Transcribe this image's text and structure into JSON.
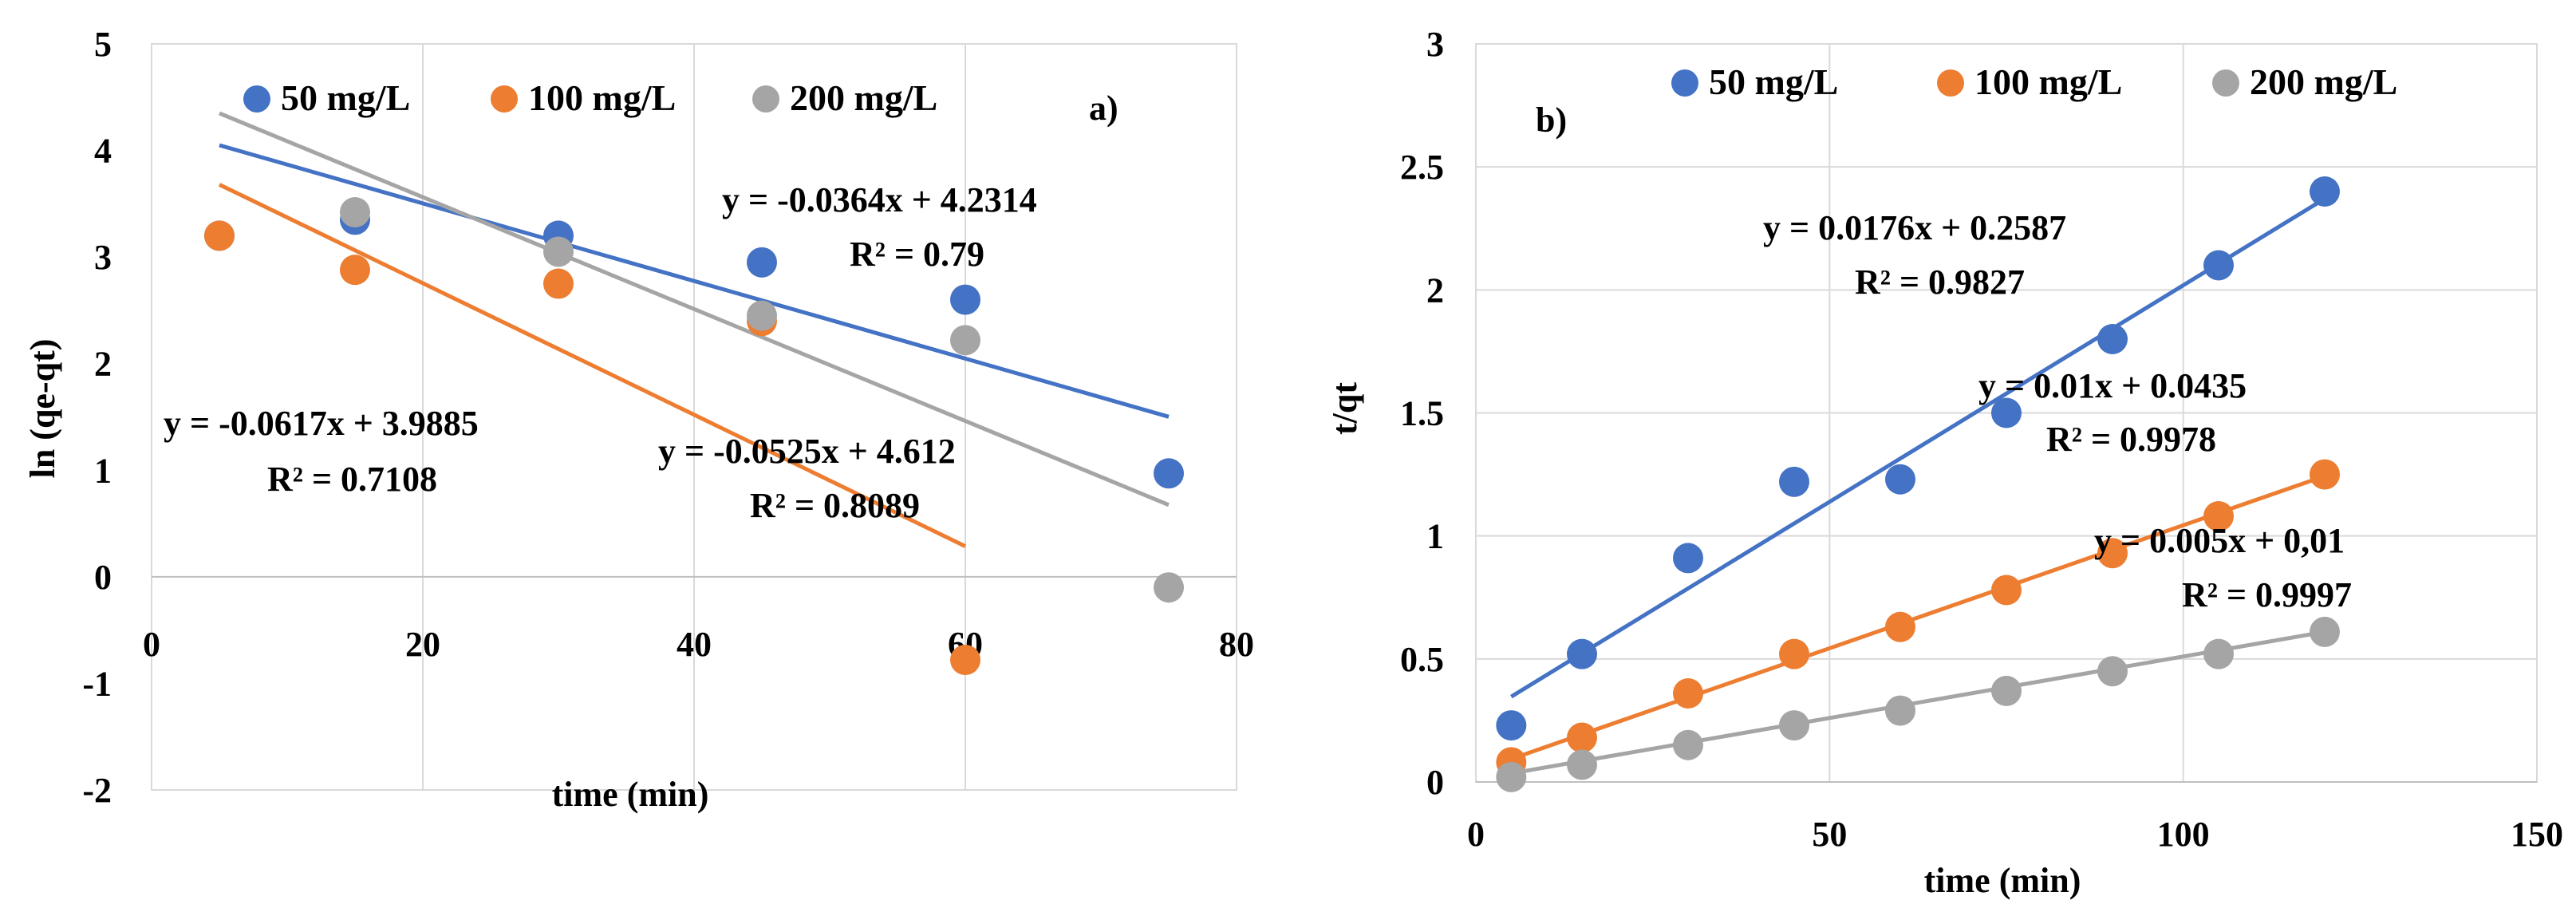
{
  "colors": {
    "s50": "#4472C4",
    "s100": "#ED7D31",
    "s200": "#A5A5A5",
    "grid": "#D9D9D9"
  },
  "chart_data": [
    {
      "type": "scatter",
      "panel_label": "a)",
      "xlabel": "time  (min)",
      "ylabel": "ln (qe-qt)",
      "xlim": [
        0,
        80
      ],
      "ylim": [
        -2,
        5
      ],
      "xticks": [
        0,
        20,
        40,
        60,
        80
      ],
      "yticks": [
        -2,
        -1,
        0,
        1,
        2,
        3,
        4,
        5
      ],
      "grid": "vertical",
      "legend": "top",
      "series": [
        {
          "name": "50 mg/L",
          "color_key": "s50",
          "x": [
            5,
            15,
            30,
            45,
            60,
            75
          ],
          "y": [
            3.2,
            3.35,
            3.2,
            2.95,
            2.6,
            0.97
          ],
          "trendline": {
            "slope": -0.0364,
            "intercept": 4.2314,
            "x_range": [
              5,
              75
            ]
          },
          "equation": "y = -0.0364x + 4.2314",
          "r2": "R² = 0.79"
        },
        {
          "name": "100 mg/L",
          "color_key": "s100",
          "x": [
            5,
            15,
            30,
            45,
            60
          ],
          "y": [
            3.2,
            2.88,
            2.75,
            2.4,
            -0.78
          ],
          "trendline": {
            "slope": -0.0617,
            "intercept": 3.9885,
            "x_range": [
              5,
              60
            ]
          },
          "equation": "y = -0.0617x + 3.9885",
          "r2": "R² = 0.7108"
        },
        {
          "name": "200 mg/L",
          "color_key": "s200",
          "x": [
            15,
            30,
            45,
            60,
            75
          ],
          "y": [
            3.42,
            3.05,
            2.45,
            2.22,
            -0.1
          ],
          "trendline": {
            "slope": -0.0525,
            "intercept": 4.612,
            "x_range": [
              5,
              75
            ]
          },
          "equation": "y = -0.0525x + 4.612",
          "r2": "R² = 0.8089"
        }
      ]
    },
    {
      "type": "scatter",
      "panel_label": "b)",
      "xlabel": "time (min)",
      "ylabel": "t/qt",
      "xlim": [
        0,
        150
      ],
      "ylim": [
        0,
        3
      ],
      "xticks": [
        0,
        50,
        100,
        150
      ],
      "yticks": [
        0,
        0.5,
        1,
        1.5,
        2,
        2.5,
        3
      ],
      "grid": "both",
      "legend": "top",
      "series": [
        {
          "name": "50 mg/L",
          "color_key": "s50",
          "x": [
            5,
            15,
            30,
            45,
            60,
            75,
            90,
            105,
            120
          ],
          "y": [
            0.23,
            0.52,
            0.91,
            1.22,
            1.23,
            1.5,
            1.8,
            2.1,
            2.4
          ],
          "trendline": {
            "slope": 0.0176,
            "intercept": 0.2587,
            "x_range": [
              5,
              120
            ]
          },
          "equation": "y = 0.0176x + 0.2587",
          "r2": "R² = 0.9827"
        },
        {
          "name": "100 mg/L",
          "color_key": "s100",
          "x": [
            5,
            15,
            30,
            45,
            60,
            75,
            90,
            105,
            120
          ],
          "y": [
            0.08,
            0.18,
            0.36,
            0.52,
            0.63,
            0.78,
            0.93,
            1.08,
            1.25
          ],
          "trendline": {
            "slope": 0.01,
            "intercept": 0.0435,
            "x_range": [
              5,
              120
            ]
          },
          "equation": "y = 0.01x + 0.0435",
          "r2": "R² = 0.9978"
        },
        {
          "name": "200 mg/L",
          "color_key": "s200",
          "x": [
            5,
            15,
            30,
            45,
            60,
            75,
            90,
            105,
            120
          ],
          "y": [
            0.02,
            0.07,
            0.15,
            0.23,
            0.29,
            0.37,
            0.45,
            0.52,
            0.61
          ],
          "trendline": {
            "slope": 0.005,
            "intercept": 0.01,
            "x_range": [
              5,
              120
            ]
          },
          "equation": "y = 0.005x + 0,01",
          "r2": "R² = 0.9997"
        }
      ]
    }
  ]
}
